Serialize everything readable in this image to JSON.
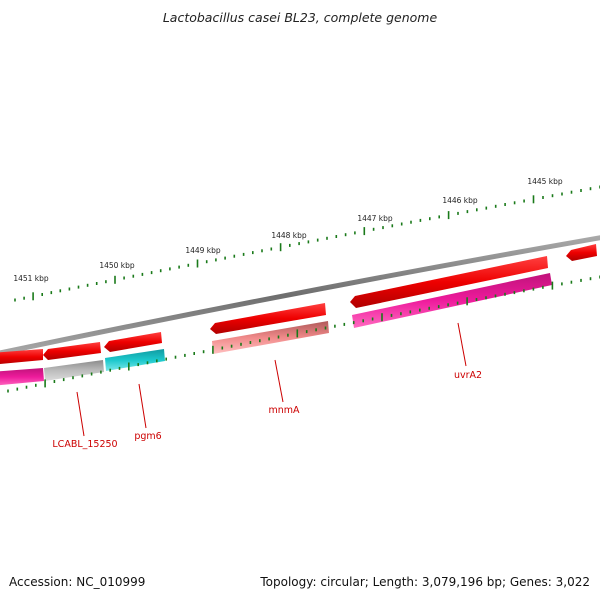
{
  "title": "Lactobacillus casei BL23, complete genome",
  "footer": {
    "accession": "Accession: NC_010999",
    "summary": "Topology: circular; Length: 3,079,196 bp; Genes: 3,022"
  },
  "colors": {
    "backbone": "#888888",
    "forward_gene": "#ee0000",
    "cog_magenta": "#ee1b9c",
    "cog_grey": "#c0c0c0",
    "cog_cyan": "#1bc8cc",
    "cog_salmon": "#f08a8a",
    "ticks": "#1a7a1a",
    "label": "#cc0000"
  },
  "ticks": [
    {
      "label": "1451 kbp",
      "kbp": 1451
    },
    {
      "label": "1450 kbp",
      "kbp": 1450
    },
    {
      "label": "1449 kbp",
      "kbp": 1449
    },
    {
      "label": "1448 kbp",
      "kbp": 1448
    },
    {
      "label": "1447 kbp",
      "kbp": 1447
    },
    {
      "label": "1446 kbp",
      "kbp": 1446
    },
    {
      "label": "1445 kbp",
      "kbp": 1445
    }
  ],
  "gene_labels": [
    "LCABL_15250",
    "pgm6",
    "mnmA",
    "uvrA2"
  ]
}
